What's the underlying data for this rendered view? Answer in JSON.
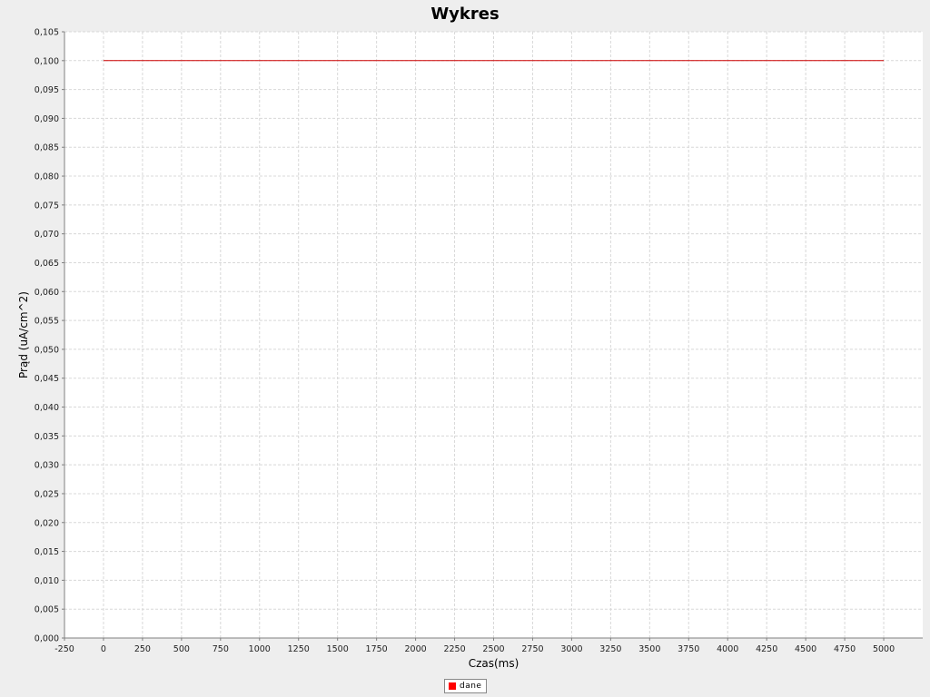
{
  "chart_data": {
    "type": "line",
    "title": "Wykres",
    "xlabel": "Czas(ms)",
    "ylabel": "Prąd (uA/cm^2)",
    "xlim": [
      -250,
      5250
    ],
    "ylim": [
      0,
      0.105
    ],
    "x_ticks": [
      "-250",
      "0",
      "250",
      "500",
      "750",
      "1000",
      "1250",
      "1500",
      "1750",
      "2000",
      "2250",
      "2500",
      "2750",
      "3000",
      "3250",
      "3500",
      "3750",
      "4000",
      "4250",
      "4500",
      "4750",
      "5000"
    ],
    "y_ticks": [
      "0,000",
      "0,005",
      "0,010",
      "0,015",
      "0,020",
      "0,025",
      "0,030",
      "0,035",
      "0,040",
      "0,045",
      "0,050",
      "0,055",
      "0,060",
      "0,065",
      "0,070",
      "0,075",
      "0,080",
      "0,085",
      "0,090",
      "0,095",
      "0,100",
      "0,105"
    ],
    "grid": true,
    "legend_position": "bottom",
    "series": [
      {
        "name": "dane",
        "color": "#cc0000",
        "x": [
          0,
          5000
        ],
        "y": [
          0.1,
          0.1
        ]
      }
    ]
  }
}
